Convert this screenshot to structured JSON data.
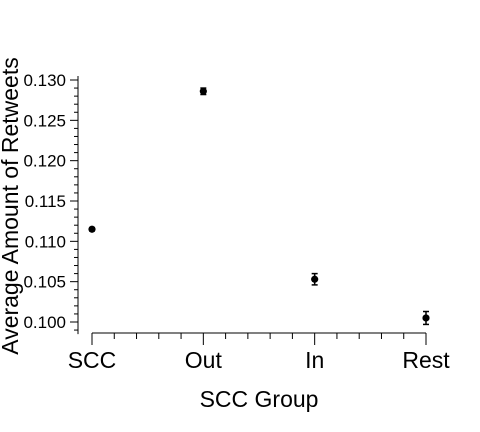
{
  "chart_data": {
    "type": "scatter",
    "title": "",
    "xlabel": "SCC Group",
    "ylabel": "Average Amount of Retweets",
    "categories": [
      "SCC",
      "Out",
      "In",
      "Rest"
    ],
    "series": [
      {
        "values": [
          0.1115,
          0.1286,
          0.1053,
          0.1005
        ],
        "error": [
          0.0002,
          0.0004,
          0.0007,
          0.0008
        ]
      }
    ],
    "ylim": [
      0.0985,
      0.1305
    ],
    "yticks": [
      "0.100",
      "0.105",
      "0.110",
      "0.115",
      "0.120",
      "0.125",
      "0.130"
    ],
    "ytick_values": [
      0.1,
      0.105,
      0.11,
      0.115,
      0.12,
      0.125,
      0.13
    ],
    "grid": false,
    "legend": "none",
    "colors": {
      "marker": "#000000",
      "axis": "#000000"
    }
  }
}
